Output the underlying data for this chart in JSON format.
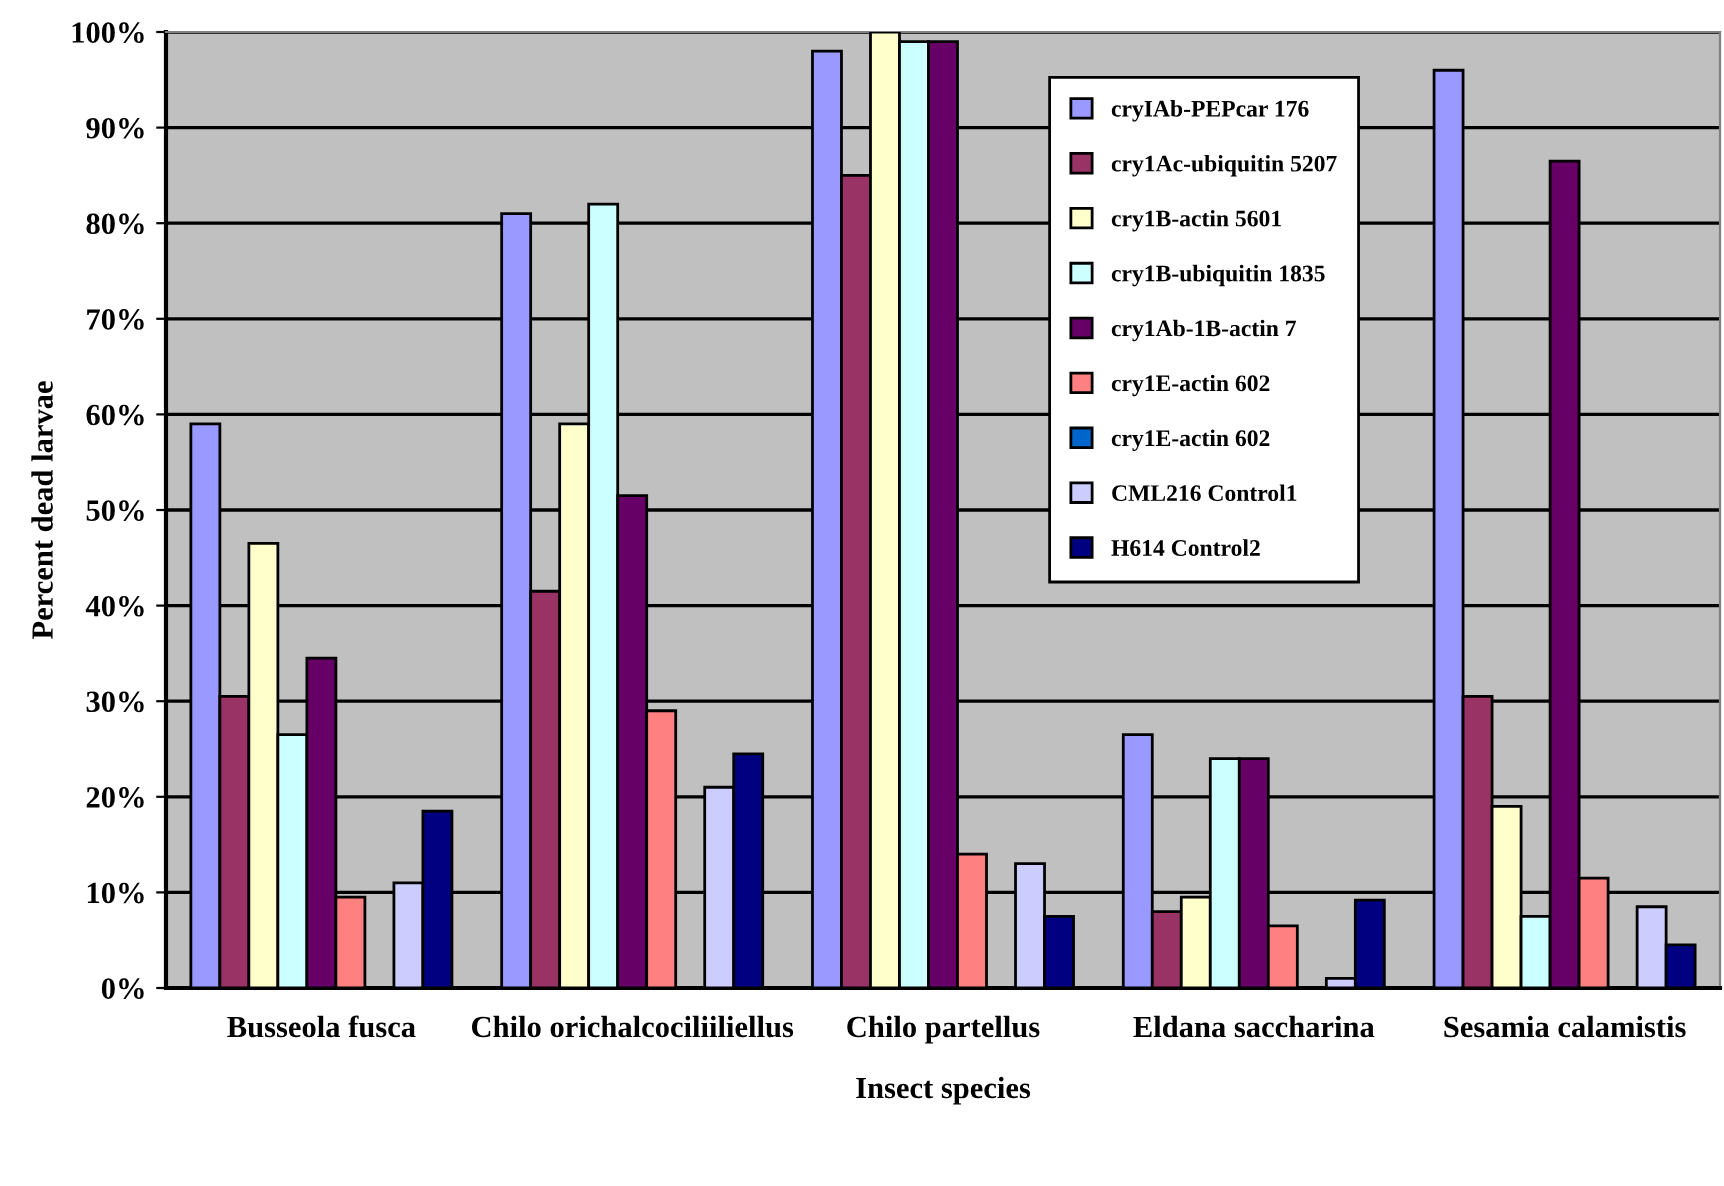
{
  "chart_data": {
    "type": "bar",
    "xlabel": "Insect species",
    "ylabel": "Percent dead larvae",
    "categories": [
      "Busseola fusca",
      "Chilo orichalcociliiliellus",
      "Chilo partellus",
      "Eldana saccharina",
      "Sesamia calamistis"
    ],
    "series": [
      {
        "name": "cryIAb-PEPcar 176",
        "color": "#9999ff",
        "values": [
          59,
          81,
          98,
          26.5,
          96
        ]
      },
      {
        "name": "cry1Ac-ubiquitin 5207",
        "color": "#993366",
        "values": [
          30.5,
          41.5,
          85,
          8,
          30.5
        ]
      },
      {
        "name": "cry1B-actin 5601",
        "color": "#ffffcc",
        "values": [
          46.5,
          59,
          100,
          9.5,
          19
        ]
      },
      {
        "name": "cry1B-ubiquitin 1835",
        "color": "#ccffff",
        "values": [
          26.5,
          82,
          99,
          24,
          7.5
        ]
      },
      {
        "name": "cry1Ab-1B-actin 7",
        "color": "#660066",
        "values": [
          34.5,
          51.5,
          99,
          24,
          86.5
        ]
      },
      {
        "name": "cry1E-actin 602",
        "color": "#ff8080",
        "values": [
          9.5,
          29,
          14,
          6.5,
          11.5
        ]
      },
      {
        "name": "cry1E-actin 602",
        "color": "#0066cc",
        "values": [
          null,
          null,
          null,
          null,
          null
        ]
      },
      {
        "name": "CML216 Control1",
        "color": "#ccccff",
        "values": [
          11,
          21,
          13,
          1,
          8.5
        ]
      },
      {
        "name": "H614 Control2",
        "color": "#000080",
        "values": [
          18.5,
          24.5,
          7.5,
          9.2,
          4.5
        ]
      }
    ],
    "ylim": [
      0,
      100
    ],
    "yticks": [
      {
        "value": 0,
        "label": "0%"
      },
      {
        "value": 10,
        "label": "10%"
      },
      {
        "value": 20,
        "label": "20%"
      },
      {
        "value": 30,
        "label": "30%"
      },
      {
        "value": 40,
        "label": "40%"
      },
      {
        "value": 50,
        "label": "50%"
      },
      {
        "value": 60,
        "label": "60%"
      },
      {
        "value": 70,
        "label": "70%"
      },
      {
        "value": 80,
        "label": "80%"
      },
      {
        "value": 90,
        "label": "90%"
      },
      {
        "value": 100,
        "label": "100%"
      }
    ],
    "grid": "y",
    "legend": "top right"
  }
}
